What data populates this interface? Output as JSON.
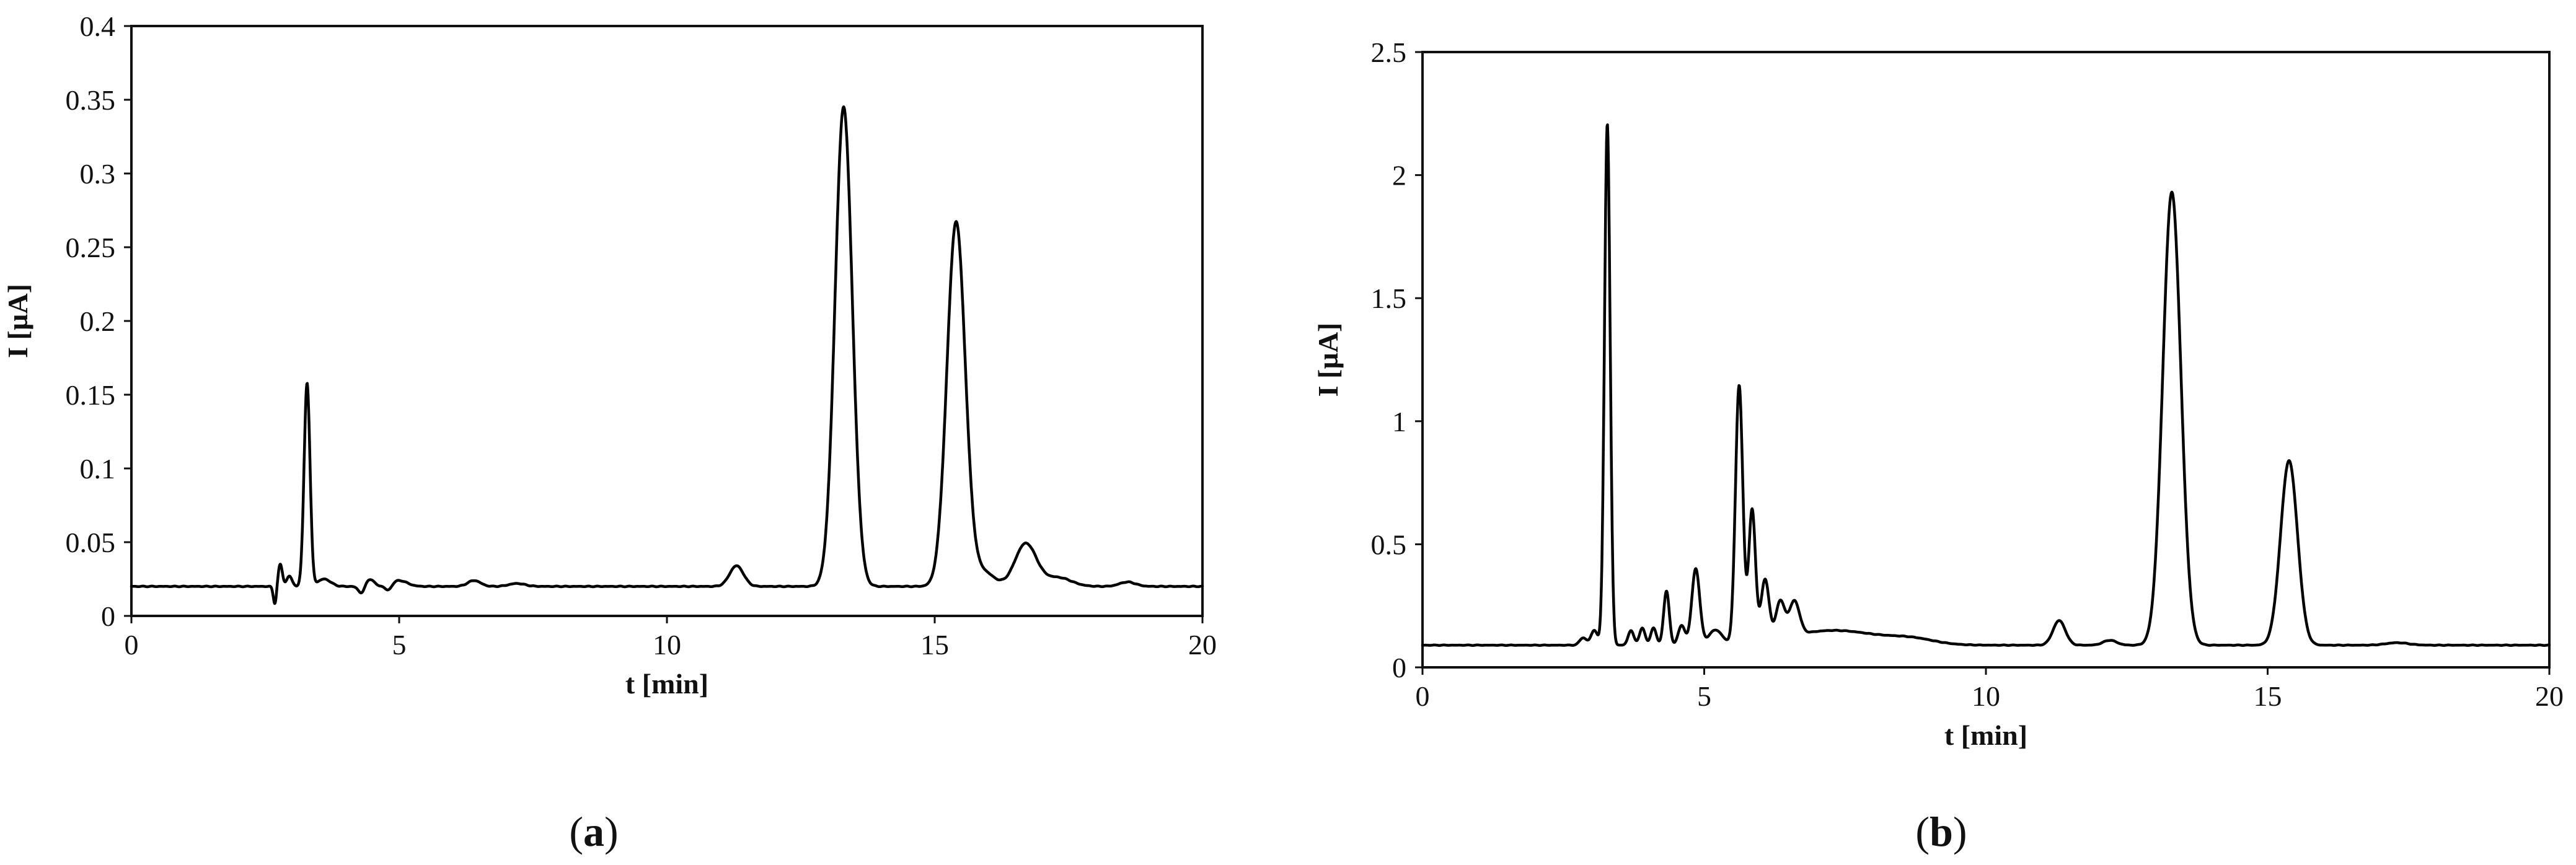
{
  "chart_data": [
    {
      "panel": "(a)",
      "panel_letter": "a",
      "type": "line",
      "title": "",
      "xlabel": "t [min]",
      "ylabel": "I [µA]",
      "xlim": [
        0,
        20
      ],
      "ylim": [
        0,
        0.4
      ],
      "xticks": [
        0,
        5,
        10,
        15,
        20
      ],
      "yticks": [
        0,
        0.05,
        0.1,
        0.15,
        0.2,
        0.25,
        0.3,
        0.35,
        0.4
      ],
      "xtick_labels": [
        "0",
        "5",
        "10",
        "15",
        "20"
      ],
      "ytick_labels": [
        "0",
        "0.05",
        "0.1",
        "0.15",
        "0.2",
        "0.25",
        "0.3",
        "0.35",
        "0.4"
      ],
      "grid": false,
      "baseline": 0.02,
      "peaks": [
        {
          "t": 2.68,
          "height": -0.012,
          "width": 0.03
        },
        {
          "t": 2.78,
          "height": 0.015,
          "width": 0.04
        },
        {
          "t": 2.95,
          "height": 0.007,
          "width": 0.05
        },
        {
          "t": 3.28,
          "height": 0.138,
          "width": 0.055
        },
        {
          "t": 3.6,
          "height": 0.005,
          "width": 0.12
        },
        {
          "t": 4.3,
          "height": -0.005,
          "width": 0.06
        },
        {
          "t": 4.45,
          "height": 0.005,
          "width": 0.08
        },
        {
          "t": 4.8,
          "height": -0.004,
          "width": 0.06
        },
        {
          "t": 5.0,
          "height": 0.004,
          "width": 0.15
        },
        {
          "t": 6.4,
          "height": 0.004,
          "width": 0.12
        },
        {
          "t": 7.2,
          "height": 0.002,
          "width": 0.15
        },
        {
          "t": 11.3,
          "height": 0.014,
          "width": 0.13
        },
        {
          "t": 13.3,
          "height": 0.325,
          "width": 0.16
        },
        {
          "t": 15.4,
          "height": 0.247,
          "width": 0.17
        },
        {
          "t": 15.9,
          "height": 0.01,
          "width": 0.2
        },
        {
          "t": 16.7,
          "height": 0.029,
          "width": 0.2
        },
        {
          "t": 17.3,
          "height": 0.006,
          "width": 0.25
        },
        {
          "t": 18.6,
          "height": 0.003,
          "width": 0.15
        }
      ]
    },
    {
      "panel": "(b)",
      "panel_letter": "b",
      "type": "line",
      "title": "",
      "xlabel": "t [min]",
      "ylabel": "I [µA]",
      "xlim": [
        0,
        20
      ],
      "ylim": [
        0,
        2.5
      ],
      "xticks": [
        0,
        5,
        10,
        15,
        20
      ],
      "yticks": [
        0,
        0.5,
        1,
        1.5,
        2,
        2.5
      ],
      "xtick_labels": [
        "0",
        "5",
        "10",
        "15",
        "20"
      ],
      "ytick_labels": [
        "0",
        "0.5",
        "1",
        "1.5",
        "2",
        "2.5"
      ],
      "grid": false,
      "baseline": 0.09,
      "peaks": [
        {
          "t": 2.85,
          "height": 0.03,
          "width": 0.06
        },
        {
          "t": 3.05,
          "height": 0.06,
          "width": 0.06
        },
        {
          "t": 3.28,
          "height": 2.12,
          "width": 0.05
        },
        {
          "t": 3.7,
          "height": 0.06,
          "width": 0.05
        },
        {
          "t": 3.9,
          "height": 0.07,
          "width": 0.05
        },
        {
          "t": 4.1,
          "height": 0.07,
          "width": 0.05
        },
        {
          "t": 4.33,
          "height": 0.22,
          "width": 0.05
        },
        {
          "t": 4.6,
          "height": 0.08,
          "width": 0.06
        },
        {
          "t": 4.85,
          "height": 0.31,
          "width": 0.07
        },
        {
          "t": 5.2,
          "height": 0.06,
          "width": 0.12
        },
        {
          "t": 5.62,
          "height": 1.05,
          "width": 0.065
        },
        {
          "t": 5.85,
          "height": 0.54,
          "width": 0.06
        },
        {
          "t": 6.08,
          "height": 0.25,
          "width": 0.07
        },
        {
          "t": 6.35,
          "height": 0.15,
          "width": 0.08
        },
        {
          "t": 6.6,
          "height": 0.14,
          "width": 0.09
        },
        {
          "t": 7.3,
          "height": 0.06,
          "width": 0.8
        },
        {
          "t": 8.7,
          "height": 0.02,
          "width": 0.4
        },
        {
          "t": 11.3,
          "height": 0.1,
          "width": 0.11
        },
        {
          "t": 12.2,
          "height": 0.02,
          "width": 0.12
        },
        {
          "t": 13.3,
          "height": 1.84,
          "width": 0.16
        },
        {
          "t": 15.38,
          "height": 0.75,
          "width": 0.15
        },
        {
          "t": 17.3,
          "height": 0.01,
          "width": 0.2
        }
      ]
    }
  ]
}
